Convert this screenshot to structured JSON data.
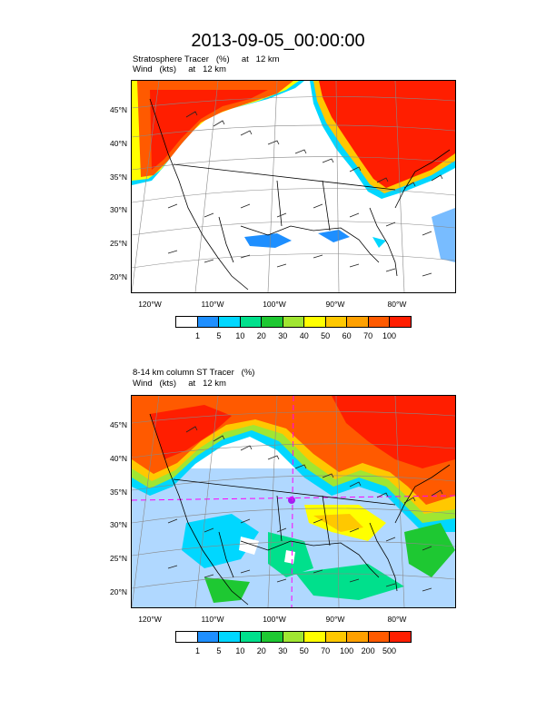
{
  "title": "2013-09-05_00:00:00",
  "panel1": {
    "line1": "Stratosphere Tracer   (%)     at   12 km",
    "line2": "Wind   (kts)     at   12 km",
    "lat_labels": [
      "45°N",
      "40°N",
      "35°N",
      "30°N",
      "25°N",
      "20°N"
    ],
    "lon_labels": [
      "120°W",
      "110°W",
      "100°W",
      "90°W",
      "80°W"
    ],
    "legend_labels": [
      "1",
      "5",
      "10",
      "20",
      "30",
      "40",
      "50",
      "60",
      "70",
      "100"
    ],
    "legend_colors": [
      "#ffffff",
      "#1e8fff",
      "#00d7ff",
      "#00e08c",
      "#1ec832",
      "#a0e632",
      "#ffff00",
      "#ffc800",
      "#ffa000",
      "#ff5a00",
      "#ff1e00"
    ]
  },
  "panel2": {
    "line1": "8-14 km column ST Tracer   (%)",
    "line2": "Wind   (kts)     at   12 km",
    "lat_labels": [
      "45°N",
      "40°N",
      "35°N",
      "30°N",
      "25°N",
      "20°N"
    ],
    "lon_labels": [
      "120°W",
      "110°W",
      "100°W",
      "90°W",
      "80°W"
    ],
    "legend_labels": [
      "1",
      "5",
      "10",
      "20",
      "30",
      "50",
      "70",
      "100",
      "200",
      "500"
    ],
    "legend_colors": [
      "#ffffff",
      "#1e8fff",
      "#00d7ff",
      "#00e08c",
      "#1ec832",
      "#a0e632",
      "#ffff00",
      "#ffc800",
      "#ffa000",
      "#ff5a00",
      "#ff1e00"
    ]
  }
}
